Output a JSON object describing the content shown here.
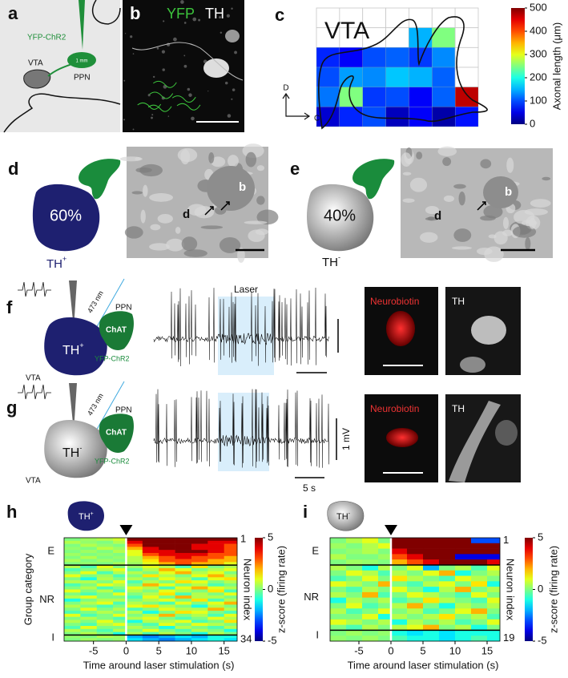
{
  "figure": {
    "a": {
      "letter": "a",
      "virus": "YFP-ChR2",
      "scale": "1 mm",
      "region": "VTA",
      "source": "PPN"
    },
    "b": {
      "letter": "b",
      "stain1": "YFP",
      "stain2": "TH"
    },
    "c": {
      "letter": "c",
      "dorsal": "D",
      "caudal": "C"
    },
    "d": {
      "letter": "d",
      "percent": "60%",
      "cell": "TH",
      "sign": "+",
      "bouton": "b",
      "dendrite": "d"
    },
    "e": {
      "letter": "e",
      "percent": "40%",
      "cell": "TH",
      "sign": "-",
      "bouton": "b",
      "dendrite": "d"
    },
    "f": {
      "letter": "f",
      "wavelength": "473 nm",
      "source": "PPN",
      "marker": "ChAT",
      "cell": "TH",
      "sign": "+",
      "virus": "YFP-ChR2",
      "region": "VTA",
      "laser": "Laser",
      "stain1": "Neurobiotin",
      "stain2": "TH"
    },
    "g": {
      "letter": "g",
      "wavelength": "473 nm",
      "source": "PPN",
      "marker": "ChAT",
      "cell": "TH",
      "sign": "-",
      "virus": "YFP-ChR2",
      "region": "VTA",
      "stain1": "Neurobiotin",
      "stain2": "TH",
      "voltage_scale": "1 mV",
      "time_scale": "5 s"
    },
    "h": {
      "letter": "h",
      "cell": "TH",
      "sign": "+"
    },
    "i": {
      "letter": "i",
      "cell": "TH",
      "sign": "-"
    }
  },
  "chart_data": [
    {
      "type": "heatmap",
      "title": "VTA",
      "z": [
        [
          null,
          null,
          null,
          null,
          null,
          null,
          null
        ],
        [
          null,
          null,
          null,
          null,
          150,
          250,
          null
        ],
        [
          80,
          60,
          100,
          110,
          90,
          130,
          null
        ],
        [
          100,
          140,
          130,
          160,
          150,
          110,
          null
        ],
        [
          120,
          250,
          90,
          100,
          60,
          110,
          470
        ],
        [
          40,
          80,
          100,
          30,
          60,
          20,
          70
        ]
      ],
      "clim": [
        0,
        500
      ],
      "cticks": [
        0,
        100,
        200,
        300,
        400,
        500
      ],
      "clabel": "Axonal length (μm)"
    },
    {
      "type": "heatmap",
      "x_bins": [
        -9.5,
        -7,
        -4.5,
        -2,
        0,
        2.5,
        5,
        7.5,
        10,
        12.5,
        15,
        17
      ],
      "xlim": [
        -9.5,
        17
      ],
      "xticks": [
        -5,
        0,
        5,
        10,
        15
      ],
      "xlabel": "Time around laser stimulation (s)",
      "stimulus_onset": 0,
      "ylabel": "Group category",
      "groups": [
        "E",
        "NR",
        "I"
      ],
      "group_sizes": [
        9,
        23,
        2
      ],
      "row_ticks": [
        1,
        34
      ],
      "row_label": "Neuron index",
      "clim": [
        -5,
        5
      ],
      "cticks": [
        5,
        0,
        -5
      ],
      "clabel": "z-score (firing rate)",
      "z": [
        [
          0,
          0.3,
          0.5,
          0.8,
          5,
          5,
          5,
          5,
          5,
          5,
          5
        ],
        [
          0.5,
          0.2,
          0,
          0.5,
          4,
          5,
          5,
          5,
          5,
          4,
          4
        ],
        [
          0,
          0.5,
          0.2,
          0,
          3,
          5,
          5,
          5,
          4,
          4,
          3
        ],
        [
          0.2,
          0,
          0.6,
          0.3,
          2,
          4,
          5,
          5,
          4,
          4,
          3
        ],
        [
          0,
          0.3,
          0,
          0.5,
          1,
          4,
          4,
          5,
          5,
          4,
          3
        ],
        [
          0.3,
          0,
          0.2,
          0,
          1,
          3,
          4,
          4,
          4,
          3,
          3
        ],
        [
          0,
          0.5,
          0,
          0.2,
          0.5,
          2,
          3,
          4,
          3,
          3,
          2
        ],
        [
          0.4,
          0,
          0.3,
          0,
          0.5,
          1.5,
          3,
          3,
          3,
          2,
          2
        ],
        [
          0,
          0.2,
          0,
          0.4,
          0.3,
          1,
          2,
          3,
          2,
          2,
          1
        ],
        [
          0.5,
          -0.5,
          1,
          0,
          0.3,
          1,
          0.5,
          -0.5,
          1.5,
          0,
          0.5
        ],
        [
          -0.5,
          0,
          0.5,
          1,
          -0.3,
          0.5,
          2,
          1,
          0,
          0.5,
          1
        ],
        [
          0,
          1,
          -0.5,
          0.5,
          0.5,
          0,
          1,
          2,
          0.5,
          1,
          0
        ],
        [
          1,
          0,
          0.3,
          -0.5,
          0,
          1.5,
          0.5,
          0,
          1,
          2,
          0.5
        ],
        [
          0,
          -1,
          0.5,
          0,
          0.5,
          0,
          1,
          0.5,
          -0.5,
          1,
          1.5
        ],
        [
          0.5,
          0.5,
          0,
          1,
          -0.5,
          0.5,
          0,
          1.5,
          1,
          0,
          0.5
        ],
        [
          -0.5,
          0,
          1,
          0.5,
          0,
          2,
          1,
          0,
          0.5,
          -0.5,
          0
        ],
        [
          0,
          0.5,
          -0.5,
          0,
          1,
          0.5,
          -0.5,
          1,
          2,
          1,
          0.5
        ],
        [
          1,
          0,
          0.5,
          -0.5,
          0.5,
          0,
          1,
          0.5,
          0,
          1.5,
          -0.5
        ],
        [
          0,
          -0.5,
          0,
          1,
          0,
          0.5,
          1.5,
          -0.5,
          0.5,
          0,
          1
        ],
        [
          0.5,
          1,
          0,
          0,
          -0.5,
          1,
          0,
          2,
          0.5,
          0.5,
          0
        ],
        [
          -1,
          0,
          0.5,
          0.5,
          0,
          0.5,
          1,
          0,
          1.5,
          -0.5,
          0.5
        ],
        [
          0,
          0.5,
          1,
          -0.5,
          0.5,
          0,
          -0.5,
          1,
          0,
          1,
          2
        ],
        [
          0.5,
          0,
          -0.5,
          0,
          1,
          1.5,
          0.5,
          0,
          -1,
          0.5,
          0
        ],
        [
          0,
          1,
          0,
          0.5,
          -0.5,
          0,
          1,
          0.5,
          0.5,
          2,
          0.5
        ],
        [
          -0.5,
          0,
          0.5,
          0,
          0.5,
          -1,
          0,
          1.5,
          1,
          0,
          -0.5
        ],
        [
          1,
          -0.5,
          0,
          1,
          0,
          0.5,
          2,
          0,
          0.5,
          -0.5,
          1
        ],
        [
          0,
          0.5,
          0,
          -0.5,
          0.5,
          1,
          0,
          -0.5,
          0,
          1,
          0.5
        ],
        [
          0.5,
          0,
          1,
          0,
          -1,
          0.5,
          0.5,
          1,
          -0.5,
          0,
          1.5
        ],
        [
          0,
          -0.5,
          0.5,
          1,
          0,
          -0.5,
          1,
          0,
          1,
          0.5,
          0
        ],
        [
          -0.5,
          1,
          0,
          0,
          0.5,
          0,
          -1,
          0.5,
          0,
          -0.5,
          0.5
        ],
        [
          0.5,
          0,
          -0.5,
          0.5,
          0,
          1,
          0,
          -0.5,
          0.5,
          0,
          -1
        ],
        [
          0,
          0.5,
          0,
          -1,
          0.5,
          -0.5,
          0.5,
          0,
          -1,
          0.5,
          0
        ],
        [
          0.2,
          0,
          0.5,
          0.3,
          -2,
          -2.5,
          -2,
          -1.5,
          -2,
          -1,
          -1
        ],
        [
          0,
          0.3,
          0,
          0.2,
          -1.5,
          -2,
          -2.5,
          -2,
          -1.5,
          -1,
          -1.5
        ]
      ]
    },
    {
      "type": "heatmap",
      "x_bins": [
        -9.5,
        -7,
        -4.5,
        -2,
        0,
        2.5,
        5,
        7.5,
        10,
        12.5,
        15,
        17
      ],
      "xlim": [
        -9.5,
        17
      ],
      "xticks": [
        -5,
        0,
        5,
        10,
        15
      ],
      "xlabel": "Time around laser stimulation (s)",
      "stimulus_onset": 0,
      "groups": [
        "E",
        "NR",
        "I"
      ],
      "group_sizes": [
        5,
        12,
        2
      ],
      "row_ticks": [
        1,
        19
      ],
      "row_label": "Neuron index",
      "clim": [
        -5,
        5
      ],
      "cticks": [
        5,
        0,
        -5
      ],
      "clabel": "z-score (firing rate)",
      "z": [
        [
          0,
          0.5,
          1,
          0,
          5,
          5,
          5,
          5,
          5,
          -3,
          -3
        ],
        [
          0.3,
          0,
          0.5,
          1,
          5,
          5,
          5,
          5,
          5,
          5,
          5
        ],
        [
          0,
          0.2,
          0.5,
          0,
          4,
          5,
          5,
          5,
          5,
          5,
          5
        ],
        [
          0.5,
          0,
          0,
          0.3,
          3,
          4,
          5,
          5,
          -4,
          -4,
          -4
        ],
        [
          0,
          0.3,
          0.2,
          0,
          2,
          3,
          4,
          5,
          5,
          5,
          4
        ],
        [
          0.5,
          0,
          -1,
          0.5,
          0,
          1,
          -2,
          0,
          0.5,
          -0.5,
          1
        ],
        [
          0,
          1,
          0.5,
          -0.5,
          0.5,
          0,
          1,
          2,
          -1,
          0,
          0.5
        ],
        [
          -0.5,
          0,
          1,
          0,
          1.5,
          0.5,
          0,
          -0.5,
          1,
          0.5,
          0
        ],
        [
          1,
          0.5,
          0,
          2,
          0,
          -0.5,
          0.5,
          1,
          0,
          1.5,
          -1
        ],
        [
          0,
          -0.5,
          0.5,
          0,
          1,
          0,
          -1,
          0.5,
          2,
          0,
          0.5
        ],
        [
          0.5,
          0,
          2,
          -0.5,
          0,
          1,
          0.5,
          0,
          -0.5,
          1,
          0
        ],
        [
          -1,
          0.5,
          0,
          0.5,
          -0.5,
          0,
          1.5,
          0.5,
          0,
          -0.5,
          1
        ],
        [
          0,
          1,
          -0.5,
          0,
          0.5,
          2,
          0,
          -1,
          0.5,
          0,
          0.5
        ],
        [
          0.5,
          -0.5,
          0,
          1,
          0,
          0.5,
          -0.5,
          0,
          1,
          2,
          0
        ],
        [
          0,
          0,
          1,
          -1,
          0.5,
          0,
          0.5,
          1.5,
          0,
          0.5,
          -0.5
        ],
        [
          1,
          0.5,
          0,
          0.5,
          -1,
          0.5,
          0,
          0.5,
          -0.5,
          0,
          1
        ],
        [
          0,
          -0.5,
          0.5,
          0,
          0.5,
          1,
          2,
          0,
          0.5,
          -1,
          0
        ],
        [
          0,
          0.3,
          0,
          0.2,
          -1,
          -1.5,
          -1,
          -1.5,
          -1,
          -1,
          -1
        ],
        [
          0.2,
          0,
          0.3,
          0,
          -0.5,
          -1,
          -1,
          -1.5,
          -1,
          -0.5,
          -1
        ]
      ]
    }
  ]
}
